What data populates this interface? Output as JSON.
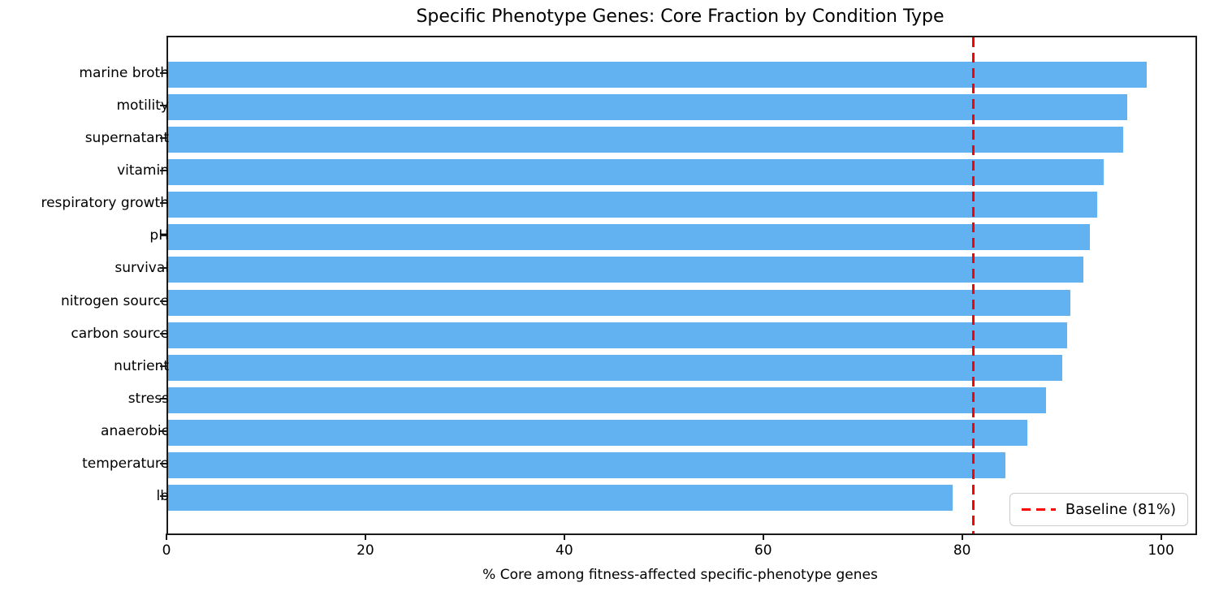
{
  "chart_data": {
    "type": "bar",
    "orientation": "horizontal",
    "title": "Specific Phenotype Genes: Core Fraction by Condition Type",
    "xlabel": "% Core among fitness-affected specific-phenotype genes",
    "categories": [
      "marine broth",
      "motility",
      "supernatant",
      "vitamin",
      "respiratory growth",
      "pH",
      "survival",
      "nitrogen source",
      "carbon source",
      "nutrient",
      "stress",
      "anaerobic",
      "temperature",
      "lb"
    ],
    "values": [
      98.4,
      96.4,
      96.0,
      94.1,
      93.4,
      92.7,
      92.0,
      90.7,
      90.4,
      89.9,
      88.3,
      86.4,
      84.2,
      78.9
    ],
    "x_ticks": [
      0,
      20,
      40,
      60,
      80,
      100
    ],
    "xlim": [
      0,
      103.3
    ],
    "grid": false,
    "legend_position": "lower right",
    "baseline": {
      "value": 81,
      "label": "Baseline (81%)"
    },
    "colors": {
      "bar": "#62b1f1",
      "baseline": "#ff0000",
      "axis": "#1a1a1a",
      "legend_border": "#cccccc"
    }
  }
}
